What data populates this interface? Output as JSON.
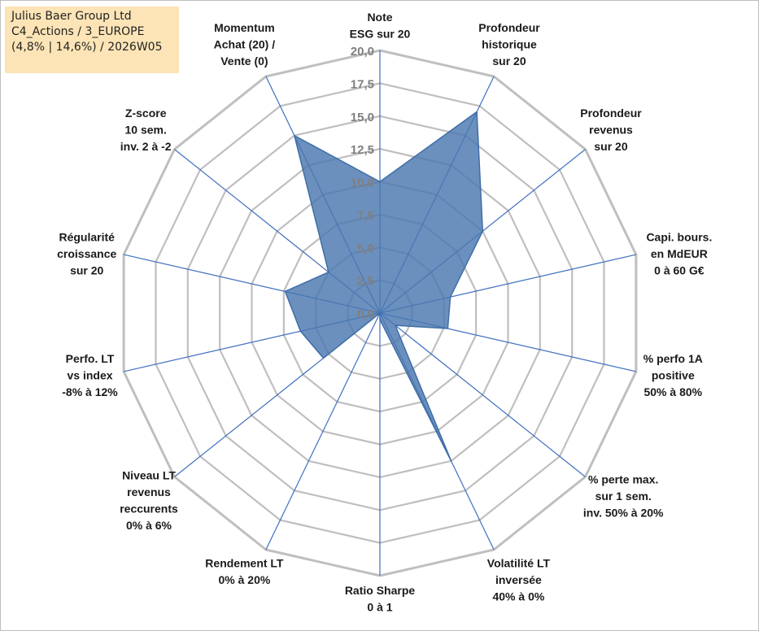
{
  "info": {
    "line1": "Julius Baer Group Ltd",
    "line2": "C4_Actions / 3_EUROPE",
    "line3": "(4,8% | 14,6%) / 2026W05"
  },
  "chart_data": {
    "type": "radar",
    "title": "",
    "range": [
      0,
      20
    ],
    "ticks": [
      "0,0",
      "2,5",
      "5,0",
      "7,5",
      "10,0",
      "12,5",
      "15,0",
      "17,5",
      "20,0"
    ],
    "colors": {
      "fill": "#4a78b0",
      "stroke": "#3f6ea8",
      "grid": "#bfbfbf",
      "spoke": "#3f6fbf"
    },
    "axes": [
      {
        "label": [
          "Note",
          "ESG sur 20"
        ],
        "value": 10.0
      },
      {
        "label": [
          "Profondeur",
          "historique",
          "sur 20"
        ],
        "value": 17.0
      },
      {
        "label": [
          "Profondeur",
          "revenus",
          "sur 20"
        ],
        "value": 10.0
      },
      {
        "label": [
          "Capi. bours.",
          "en MdEUR",
          "0 à 60 G€"
        ],
        "value": 5.5
      },
      {
        "label": [
          "% perfo 1A",
          "positive",
          "50% à 80%"
        ],
        "value": 5.3
      },
      {
        "label": [
          "% perte max.",
          "sur 1 sem.",
          "inv. 50% à 20%"
        ],
        "value": 1.5
      },
      {
        "label": [
          "Volatilité LT",
          "inversée",
          "40% à 0%"
        ],
        "value": 12.5
      },
      {
        "label": [
          "Ratio Sharpe",
          "0 à 1"
        ],
        "value": 0.5
      },
      {
        "label": [
          "Rendement LT",
          "0% à 20%"
        ],
        "value": 0.0
      },
      {
        "label": [
          "Niveau LT",
          "revenus",
          "reccurents",
          "0% à 6%"
        ],
        "value": 5.5
      },
      {
        "label": [
          "Perfo. LT",
          "vs index",
          "-8% à 12%"
        ],
        "value": 6.2
      },
      {
        "label": [
          "Régularité",
          "croissance",
          "sur 20"
        ],
        "value": 7.4
      },
      {
        "label": [
          "Z-score",
          "10 sem.",
          "inv. 2 à -2"
        ],
        "value": 5.0
      },
      {
        "label": [
          "Momentum",
          "Achat (20) /",
          "Vente (0)"
        ],
        "value": 15.0
      }
    ]
  }
}
